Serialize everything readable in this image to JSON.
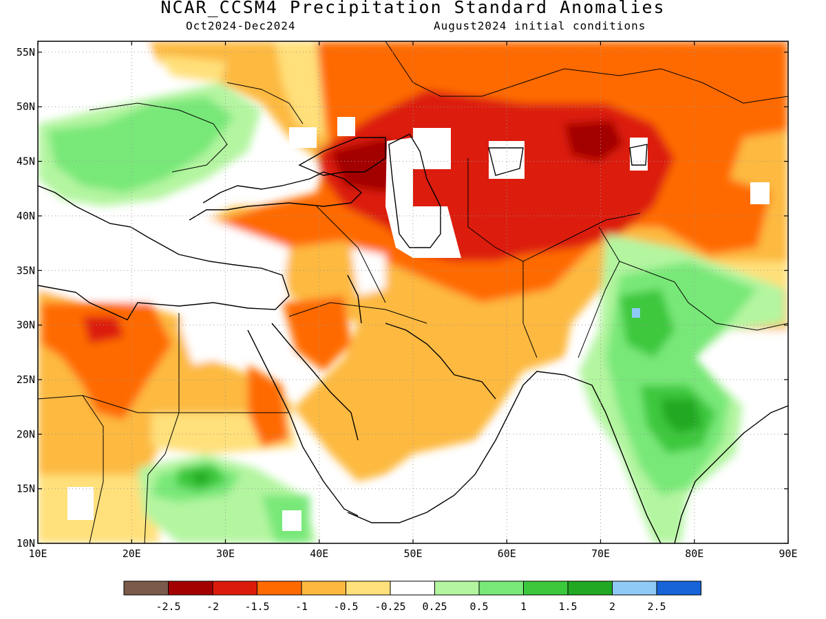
{
  "header": {
    "title": "NCAR_CCSM4 Precipitation Standard Anomalies",
    "period": "Oct2024-Dec2024",
    "init": "August2024 initial conditions"
  },
  "map": {
    "lon_range": [
      10,
      90
    ],
    "lat_range": [
      10,
      56
    ],
    "lon_ticks": [
      "10E",
      "20E",
      "30E",
      "40E",
      "50E",
      "60E",
      "70E",
      "80E",
      "90E"
    ],
    "lat_ticks": [
      "10N",
      "15N",
      "20N",
      "25N",
      "30N",
      "35N",
      "40N",
      "45N",
      "50N",
      "55N"
    ],
    "land_outline_color": "#000000"
  },
  "colorbar": {
    "colors": [
      "#7b5a4b",
      "#a30000",
      "#dc1c0a",
      "#ff6a00",
      "#fdb93f",
      "#ffe07a",
      "#ffffff",
      "#b4f5a0",
      "#78e878",
      "#3cc83c",
      "#22a822",
      "#8ecaf5",
      "#1664d8"
    ],
    "labels": [
      "-2.5",
      "-2",
      "-1.5",
      "-1",
      "-0.5",
      "-0.25",
      "0.25",
      "0.5",
      "1",
      "1.5",
      "2",
      "2.5"
    ]
  }
}
